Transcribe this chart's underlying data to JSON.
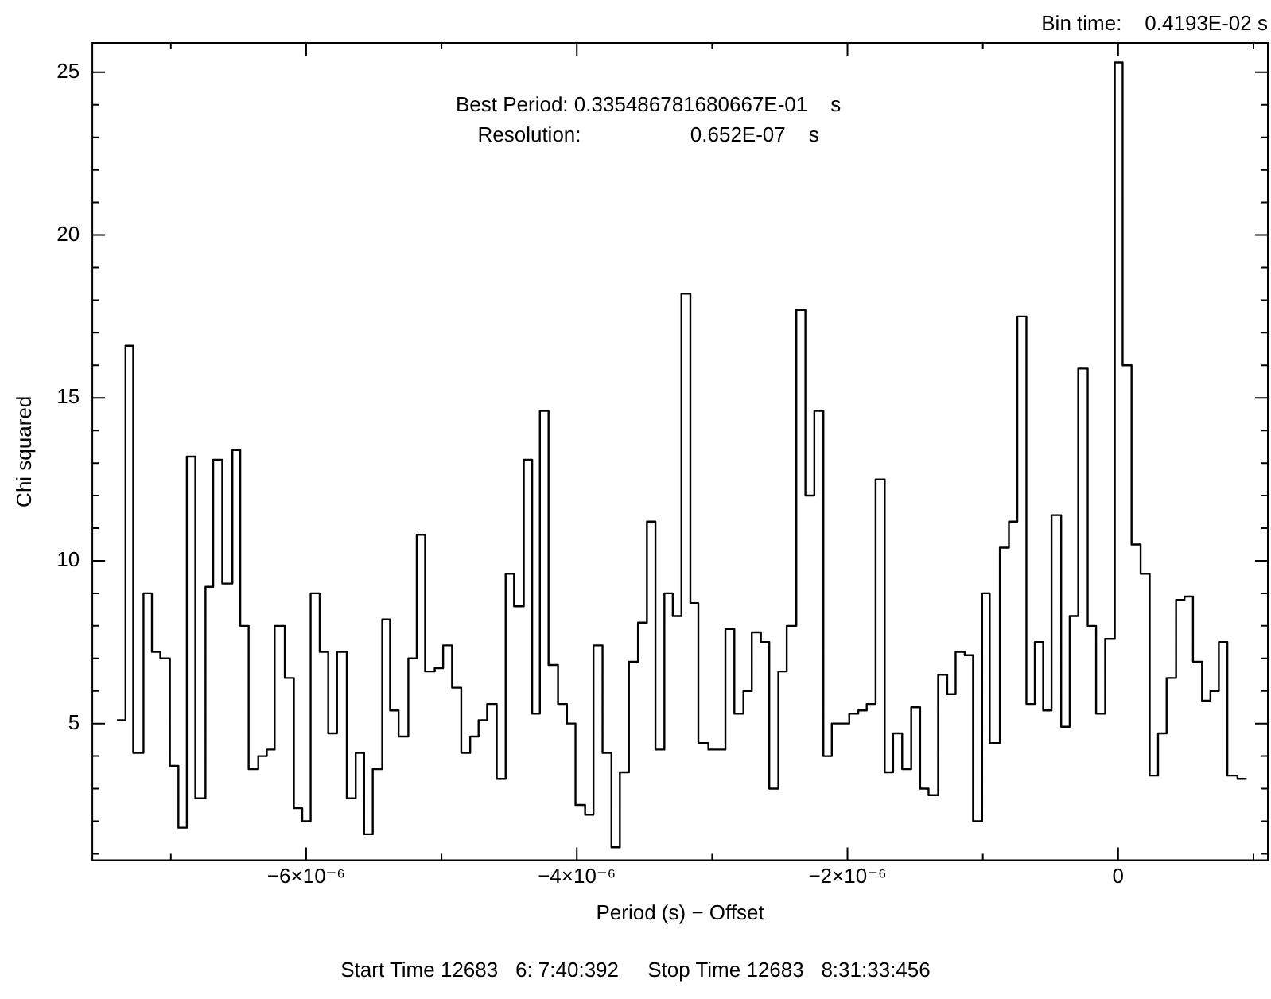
{
  "chart_data": {
    "type": "step",
    "xlabel": "Period (s) − Offset",
    "ylabel": "Chi squared",
    "annotations": [
      "Bin time:    0.4193E-02 s",
      "Best Period: 0.335486781680667E-01    s",
      "Resolution:                   0.652E-07    s",
      "Start Time 12683   6: 7:40:392     Stop Time 12683   8:31:33:456"
    ],
    "x": [
      -7.398e-06,
      -7.335e-06,
      -7.278e-06,
      -7.202e-06,
      -7.14e-06,
      -7.078e-06,
      -7.007e-06,
      -6.944e-06,
      -6.882e-06,
      -6.819e-06,
      -6.744e-06,
      -6.687e-06,
      -6.62e-06,
      -6.545e-06,
      -6.487e-06,
      -6.425e-06,
      -6.354e-06,
      -6.291e-06,
      -6.233e-06,
      -6.158e-06,
      -6.091e-06,
      -6.029e-06,
      -5.967e-06,
      -5.9e-06,
      -5.837e-06,
      -5.772e-06,
      -5.7e-06,
      -5.634e-06,
      -5.572e-06,
      -5.508e-06,
      -5.438e-06,
      -5.38e-06,
      -5.317e-06,
      -5.245e-06,
      -5.183e-06,
      -5.121e-06,
      -5.05e-06,
      -4.988e-06,
      -4.922e-06,
      -4.854e-06,
      -4.788e-06,
      -4.726e-06,
      -4.663e-06,
      -4.592e-06,
      -4.526e-06,
      -4.464e-06,
      -4.392e-06,
      -4.33e-06,
      -4.273e-06,
      -4.209e-06,
      -4.139e-06,
      -4.073e-06,
      -4.01e-06,
      -3.939e-06,
      -3.877e-06,
      -3.81e-06,
      -3.744e-06,
      -3.682e-06,
      -3.615e-06,
      -3.548e-06,
      -3.482e-06,
      -3.419e-06,
      -3.353e-06,
      -3.291e-06,
      -3.227e-06,
      -3.161e-06,
      -3.102e-06,
      -3.028e-06,
      -2.902e-06,
      -2.836e-06,
      -2.769e-06,
      -2.707e-06,
      -2.64e-06,
      -2.578e-06,
      -2.511e-06,
      -2.449e-06,
      -2.378e-06,
      -2.311e-06,
      -2.245e-06,
      -2.178e-06,
      -2.116e-06,
      -1.987e-06,
      -1.92e-06,
      -1.858e-06,
      -1.792e-06,
      -1.725e-06,
      -1.663e-06,
      -1.596e-06,
      -1.529e-06,
      -1.463e-06,
      -1.401e-06,
      -1.33e-06,
      -1.263e-06,
      -1.201e-06,
      -1.134e-06,
      -1.072e-06,
      -1.005e-06,
      -9.49e-07,
      -8.74e-07,
      -8.07e-07,
      -7.45e-07,
      -6.78e-07,
      -6.16e-07,
      -5.54e-07,
      -4.92e-07,
      -4.21e-07,
      -3.58e-07,
      -2.95e-07,
      -2.25e-07,
      -1.63e-07,
      -9.6e-08,
      -2.5e-08,
      3.3e-08,
      9.9e-08,
      1.66e-07,
      2.33e-07,
      2.95e-07,
      3.58e-07,
      4.28e-07,
      4.9e-07,
      5.53e-07,
      6.2e-07,
      6.82e-07,
      7.44e-07,
      8.07e-07,
      8.82e-07,
      9.49e-07
    ],
    "series": [
      {
        "color": "#000000",
        "values": [
          5.1,
          16.6,
          4.1,
          9.0,
          7.2,
          7.0,
          3.7,
          1.8,
          13.2,
          2.7,
          9.2,
          13.1,
          9.3,
          13.4,
          8.0,
          3.6,
          4.0,
          4.2,
          8.0,
          6.4,
          2.4,
          2.0,
          9.0,
          7.2,
          4.7,
          7.2,
          2.7,
          4.1,
          1.6,
          3.6,
          8.2,
          5.4,
          4.6,
          7.0,
          10.8,
          6.6,
          6.7,
          7.4,
          6.1,
          4.1,
          4.6,
          5.1,
          5.6,
          3.3,
          9.6,
          8.6,
          13.1,
          5.3,
          14.6,
          6.8,
          5.6,
          5.0,
          2.5,
          2.2,
          7.4,
          4.1,
          1.2,
          3.5,
          6.9,
          8.1,
          11.2,
          4.2,
          9.0,
          8.3,
          18.2,
          8.7,
          4.4,
          4.2,
          7.9,
          5.3,
          6.0,
          7.8,
          7.5,
          3.0,
          6.6,
          8.0,
          17.7,
          12.0,
          14.6,
          4.0,
          5.0,
          5.3,
          5.4,
          5.6,
          12.5,
          3.5,
          4.7,
          3.6,
          5.5,
          3.0,
          2.8,
          6.5,
          5.9,
          7.2,
          7.1,
          2.0,
          9.0,
          4.4,
          10.4,
          11.2,
          17.5,
          5.6,
          7.5,
          5.4,
          11.4,
          4.9,
          8.3,
          15.9,
          8.0,
          5.3,
          7.6,
          25.3,
          16.0,
          10.5,
          9.6,
          3.4,
          4.7,
          6.4,
          8.8,
          8.9,
          6.9,
          5.7,
          6.0,
          7.5,
          3.4,
          3.3,
          3.3
        ]
      }
    ],
    "xlim": [
      -7.58e-06,
      1.106e-06
    ],
    "xticks": [
      {
        "value": -7e-06,
        "label": null
      },
      {
        "value": -6e-06,
        "label": "−6×10⁻⁶"
      },
      {
        "value": -5e-06,
        "label": null
      },
      {
        "value": -4e-06,
        "label": "−4×10⁻⁶"
      },
      {
        "value": -3e-06,
        "label": null
      },
      {
        "value": -2e-06,
        "label": "−2×10⁻⁶"
      },
      {
        "value": -1e-06,
        "label": null
      },
      0,
      {
        "value": 1e-06,
        "label": null
      }
    ],
    "ylim": [
      0.8,
      25.9
    ],
    "yticks": [
      {
        "value": 1,
        "label": null
      },
      {
        "value": 2,
        "label": null
      },
      {
        "value": 3,
        "label": null
      },
      {
        "value": 4,
        "label": null
      },
      5,
      {
        "value": 6,
        "label": null
      },
      {
        "value": 7,
        "label": null
      },
      {
        "value": 8,
        "label": null
      },
      {
        "value": 9,
        "label": null
      },
      10,
      {
        "value": 11,
        "label": null
      },
      {
        "value": 12,
        "label": null
      },
      {
        "value": 13,
        "label": null
      },
      {
        "value": 14,
        "label": null
      },
      15,
      {
        "value": 16,
        "label": null
      },
      {
        "value": 17,
        "label": null
      },
      {
        "value": 18,
        "label": null
      },
      {
        "value": 19,
        "label": null
      },
      20,
      {
        "value": 21,
        "label": null
      },
      {
        "value": 22,
        "label": null
      },
      {
        "value": 23,
        "label": null
      },
      {
        "value": 24,
        "label": null
      },
      25
    ],
    "grid": false,
    "legend": false
  }
}
